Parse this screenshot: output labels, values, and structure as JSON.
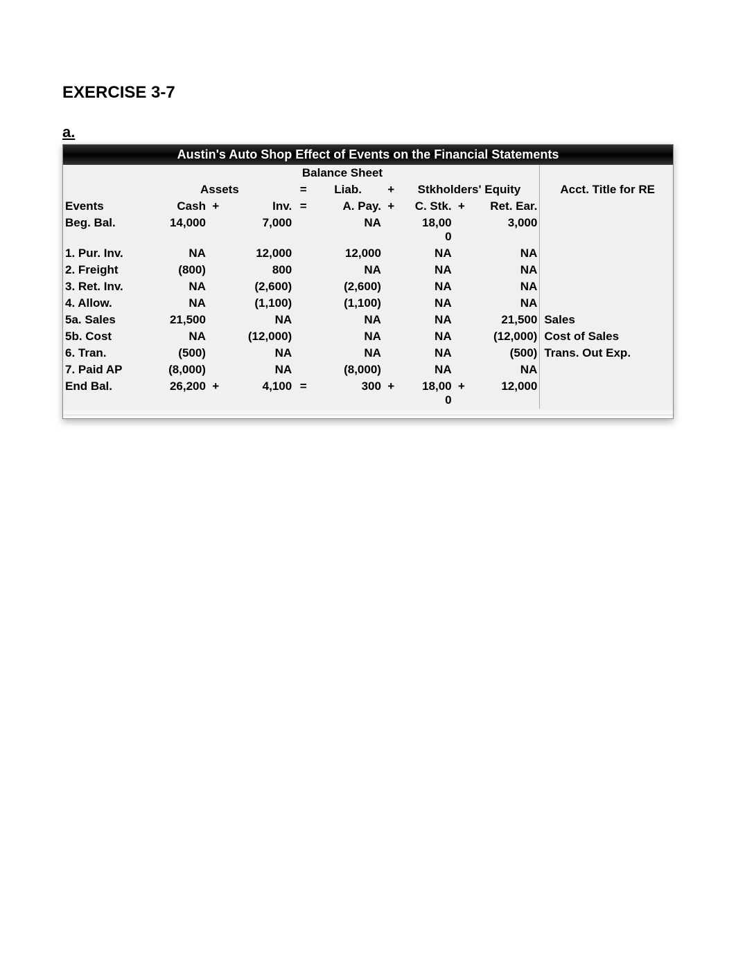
{
  "title": "EXERCISE 3-7",
  "section": "a.",
  "header_title": "Austin's Auto Shop  Effect of Events on the Financial Statements",
  "balance_sheet_label": "Balance Sheet",
  "group_headers": {
    "assets": "Assets",
    "eq1": "=",
    "liab": "Liab.",
    "plus1": "+",
    "stkholders": "Stkholders' Equity",
    "acct_title": "Acct. Title for RE"
  },
  "col_headers": {
    "events": "Events",
    "cash": "Cash",
    "plus_a": "+",
    "inv": "Inv.",
    "eq": "=",
    "apay": "A. Pay.",
    "plus_b": "+",
    "cstk": "C. Stk.",
    "plus_c": "+",
    "retear": "Ret. Ear."
  },
  "rows": [
    {
      "ev": "Beg. Bal.",
      "cash": "14,000",
      "inv": "7,000",
      "apay": "NA",
      "cstk_top": "18,00",
      "cstk_bot": "0",
      "ret": "3,000",
      "acct": ""
    },
    {
      "ev": "1. Pur. Inv.",
      "cash": "NA",
      "inv": "12,000",
      "apay": "12,000",
      "cstk": "NA",
      "ret": "NA",
      "acct": ""
    },
    {
      "ev": "2. Freight",
      "cash": "(800)",
      "inv": "800",
      "apay": "NA",
      "cstk": "NA",
      "ret": "NA",
      "acct": ""
    },
    {
      "ev": "3. Ret. Inv.",
      "cash": "NA",
      "inv": "(2,600)",
      "apay": "(2,600)",
      "cstk": "NA",
      "ret": "NA",
      "acct": ""
    },
    {
      "ev": "4. Allow.",
      "cash": "NA",
      "inv": "(1,100)",
      "apay": "(1,100)",
      "cstk": "NA",
      "ret": "NA",
      "acct": ""
    },
    {
      "ev": "5a. Sales",
      "cash": "21,500",
      "inv": "NA",
      "apay": "NA",
      "cstk": "NA",
      "ret": "21,500",
      "acct": "Sales"
    },
    {
      "ev": "5b. Cost",
      "cash": "NA",
      "inv": "(12,000)",
      "apay": "NA",
      "cstk": "NA",
      "ret": "(12,000)",
      "acct": "Cost of Sales"
    },
    {
      "ev": "6. Tran.",
      "cash": "(500)",
      "inv": "NA",
      "apay": "NA",
      "cstk": "NA",
      "ret": "(500)",
      "acct": "Trans. Out Exp."
    },
    {
      "ev": "7. Paid AP",
      "cash": "(8,000)",
      "inv": "NA",
      "apay": "(8,000)",
      "cstk": "NA",
      "ret": "NA",
      "acct": ""
    }
  ],
  "end_row": {
    "ev": "End Bal.",
    "cash": "26,200",
    "op1": "+",
    "inv": "4,100",
    "eq": "=",
    "apay": "300",
    "op2": "+",
    "cstk_top": "18,00",
    "cstk_bot": "0",
    "op3": "+",
    "ret": "12,000",
    "acct": ""
  },
  "colors": {
    "header_bg": "#000000",
    "header_text": "#ffffff",
    "table_bg": "#f0f0f0",
    "border": "#888888"
  },
  "font_sizes": {
    "title": 24,
    "section": 22,
    "header": 18,
    "body": 17
  }
}
